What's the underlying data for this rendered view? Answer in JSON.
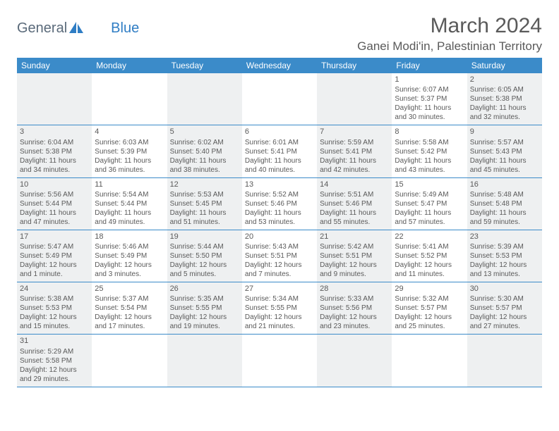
{
  "logo": {
    "text1": "General",
    "text2": "Blue"
  },
  "title": "March 2024",
  "location": "Ganei Modi'in, Palestinian Territory",
  "colors": {
    "header_bg": "#3b8bc9",
    "header_text": "#ffffff",
    "border": "#3b8bc9",
    "shade": "#eef0f1",
    "text": "#5a5a5a",
    "logo_gray": "#5a6a7a",
    "logo_blue": "#2f7dc4"
  },
  "weekdays": [
    "Sunday",
    "Monday",
    "Tuesday",
    "Wednesday",
    "Thursday",
    "Friday",
    "Saturday"
  ],
  "shade_pattern": [
    true,
    false,
    true,
    false,
    true,
    false,
    true
  ],
  "weeks": [
    [
      null,
      null,
      null,
      null,
      null,
      {
        "n": "1",
        "sr": "6:07 AM",
        "ss": "5:37 PM",
        "d": "11 hours and 30 minutes."
      },
      {
        "n": "2",
        "sr": "6:05 AM",
        "ss": "5:38 PM",
        "d": "11 hours and 32 minutes."
      }
    ],
    [
      {
        "n": "3",
        "sr": "6:04 AM",
        "ss": "5:38 PM",
        "d": "11 hours and 34 minutes."
      },
      {
        "n": "4",
        "sr": "6:03 AM",
        "ss": "5:39 PM",
        "d": "11 hours and 36 minutes."
      },
      {
        "n": "5",
        "sr": "6:02 AM",
        "ss": "5:40 PM",
        "d": "11 hours and 38 minutes."
      },
      {
        "n": "6",
        "sr": "6:01 AM",
        "ss": "5:41 PM",
        "d": "11 hours and 40 minutes."
      },
      {
        "n": "7",
        "sr": "5:59 AM",
        "ss": "5:41 PM",
        "d": "11 hours and 42 minutes."
      },
      {
        "n": "8",
        "sr": "5:58 AM",
        "ss": "5:42 PM",
        "d": "11 hours and 43 minutes."
      },
      {
        "n": "9",
        "sr": "5:57 AM",
        "ss": "5:43 PM",
        "d": "11 hours and 45 minutes."
      }
    ],
    [
      {
        "n": "10",
        "sr": "5:56 AM",
        "ss": "5:44 PM",
        "d": "11 hours and 47 minutes."
      },
      {
        "n": "11",
        "sr": "5:54 AM",
        "ss": "5:44 PM",
        "d": "11 hours and 49 minutes."
      },
      {
        "n": "12",
        "sr": "5:53 AM",
        "ss": "5:45 PM",
        "d": "11 hours and 51 minutes."
      },
      {
        "n": "13",
        "sr": "5:52 AM",
        "ss": "5:46 PM",
        "d": "11 hours and 53 minutes."
      },
      {
        "n": "14",
        "sr": "5:51 AM",
        "ss": "5:46 PM",
        "d": "11 hours and 55 minutes."
      },
      {
        "n": "15",
        "sr": "5:49 AM",
        "ss": "5:47 PM",
        "d": "11 hours and 57 minutes."
      },
      {
        "n": "16",
        "sr": "5:48 AM",
        "ss": "5:48 PM",
        "d": "11 hours and 59 minutes."
      }
    ],
    [
      {
        "n": "17",
        "sr": "5:47 AM",
        "ss": "5:49 PM",
        "d": "12 hours and 1 minute."
      },
      {
        "n": "18",
        "sr": "5:46 AM",
        "ss": "5:49 PM",
        "d": "12 hours and 3 minutes."
      },
      {
        "n": "19",
        "sr": "5:44 AM",
        "ss": "5:50 PM",
        "d": "12 hours and 5 minutes."
      },
      {
        "n": "20",
        "sr": "5:43 AM",
        "ss": "5:51 PM",
        "d": "12 hours and 7 minutes."
      },
      {
        "n": "21",
        "sr": "5:42 AM",
        "ss": "5:51 PM",
        "d": "12 hours and 9 minutes."
      },
      {
        "n": "22",
        "sr": "5:41 AM",
        "ss": "5:52 PM",
        "d": "12 hours and 11 minutes."
      },
      {
        "n": "23",
        "sr": "5:39 AM",
        "ss": "5:53 PM",
        "d": "12 hours and 13 minutes."
      }
    ],
    [
      {
        "n": "24",
        "sr": "5:38 AM",
        "ss": "5:53 PM",
        "d": "12 hours and 15 minutes."
      },
      {
        "n": "25",
        "sr": "5:37 AM",
        "ss": "5:54 PM",
        "d": "12 hours and 17 minutes."
      },
      {
        "n": "26",
        "sr": "5:35 AM",
        "ss": "5:55 PM",
        "d": "12 hours and 19 minutes."
      },
      {
        "n": "27",
        "sr": "5:34 AM",
        "ss": "5:55 PM",
        "d": "12 hours and 21 minutes."
      },
      {
        "n": "28",
        "sr": "5:33 AM",
        "ss": "5:56 PM",
        "d": "12 hours and 23 minutes."
      },
      {
        "n": "29",
        "sr": "5:32 AM",
        "ss": "5:57 PM",
        "d": "12 hours and 25 minutes."
      },
      {
        "n": "30",
        "sr": "5:30 AM",
        "ss": "5:57 PM",
        "d": "12 hours and 27 minutes."
      }
    ],
    [
      {
        "n": "31",
        "sr": "5:29 AM",
        "ss": "5:58 PM",
        "d": "12 hours and 29 minutes."
      },
      null,
      null,
      null,
      null,
      null,
      null
    ]
  ],
  "labels": {
    "sunrise": "Sunrise: ",
    "sunset": "Sunset: ",
    "daylight": "Daylight: "
  }
}
